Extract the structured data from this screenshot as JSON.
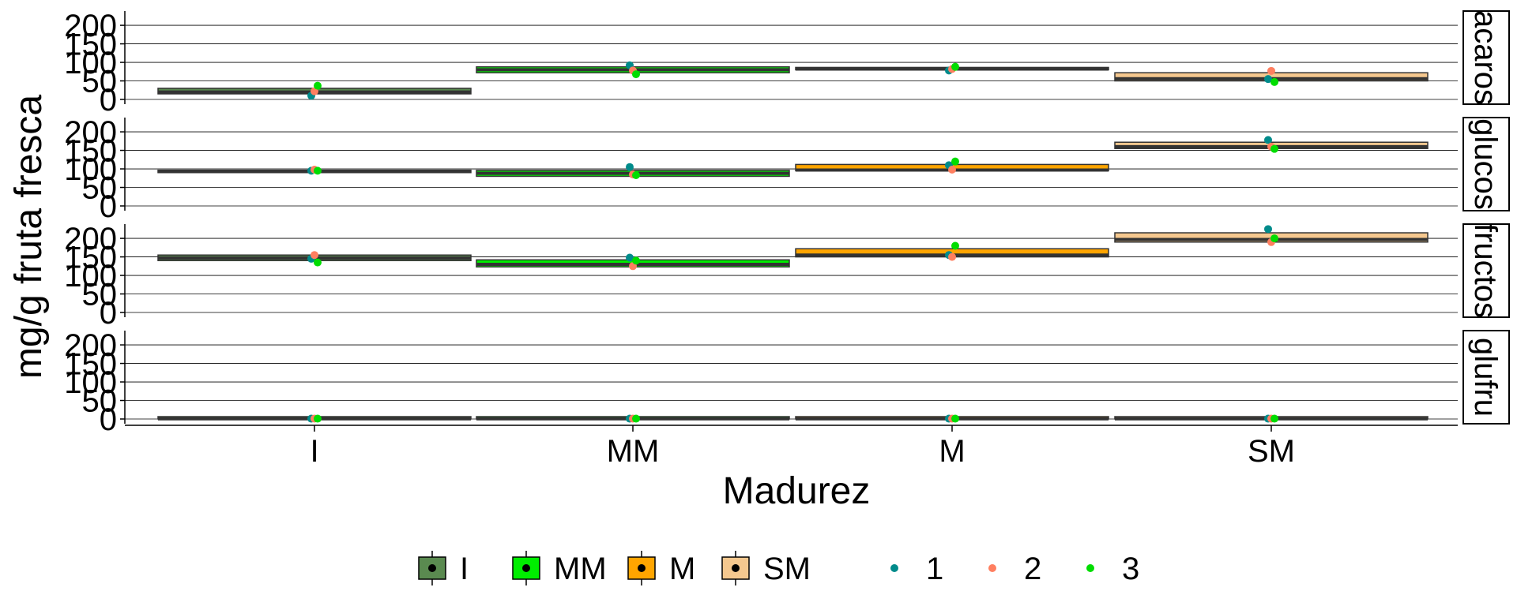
{
  "chart_data": {
    "type": "boxplot",
    "xlabel": "Madurez",
    "ylabel": "mg/g fruta fresca",
    "categories": [
      "I",
      "MM",
      "M",
      "SM"
    ],
    "y_ticks": [
      0,
      50,
      100,
      150,
      200
    ],
    "ylim": [
      0,
      230
    ],
    "grid": "horizontal",
    "legend_position": "bottom",
    "fill_legend": [
      {
        "label": "I",
        "color": "#5A8A50"
      },
      {
        "label": "MM",
        "color": "#00EE00"
      },
      {
        "label": "M",
        "color": "#FFA500"
      },
      {
        "label": "SM",
        "color": "#F5C88F"
      }
    ],
    "point_legend": [
      {
        "label": "1",
        "color": "#008B8B"
      },
      {
        "label": "2",
        "color": "#FF7F60"
      },
      {
        "label": "3",
        "color": "#00DD00"
      }
    ],
    "facets": [
      {
        "label": "acaros",
        "boxes": [
          {
            "category": "I",
            "q1": 15,
            "median": 20,
            "q3": 30
          },
          {
            "category": "MM",
            "q1": 72,
            "median": 80,
            "q3": 88
          },
          {
            "category": "M",
            "q1": 80,
            "median": 82,
            "q3": 85
          },
          {
            "category": "SM",
            "q1": 50,
            "median": 56,
            "q3": 72
          }
        ],
        "points": [
          {
            "category": "I",
            "values": [
              10,
              22,
              37
            ]
          },
          {
            "category": "MM",
            "values": [
              92,
              78,
              68
            ]
          },
          {
            "category": "M",
            "values": [
              78,
              82,
              88
            ]
          },
          {
            "category": "SM",
            "values": [
              55,
              77,
              47
            ]
          }
        ]
      },
      {
        "label": "glucos",
        "boxes": [
          {
            "category": "I",
            "q1": 90,
            "median": 93,
            "q3": 96
          },
          {
            "category": "MM",
            "q1": 80,
            "median": 88,
            "q3": 96
          },
          {
            "category": "M",
            "q1": 95,
            "median": 97,
            "q3": 112
          },
          {
            "category": "SM",
            "q1": 155,
            "median": 160,
            "q3": 172
          }
        ],
        "points": [
          {
            "category": "I",
            "values": [
              95,
              98,
              95
            ]
          },
          {
            "category": "MM",
            "values": [
              105,
              85,
              83
            ]
          },
          {
            "category": "M",
            "values": [
              110,
              98,
              120
            ]
          },
          {
            "category": "SM",
            "values": [
              178,
              160,
              154
            ]
          }
        ]
      },
      {
        "label": "fructos",
        "boxes": [
          {
            "category": "I",
            "q1": 140,
            "median": 147,
            "q3": 155
          },
          {
            "category": "MM",
            "q1": 123,
            "median": 130,
            "q3": 142
          },
          {
            "category": "M",
            "q1": 150,
            "median": 155,
            "q3": 172
          },
          {
            "category": "SM",
            "q1": 190,
            "median": 197,
            "q3": 215
          }
        ],
        "points": [
          {
            "category": "I",
            "values": [
              145,
              155,
              135
            ]
          },
          {
            "category": "MM",
            "values": [
              148,
              125,
              140
            ]
          },
          {
            "category": "M",
            "values": [
              155,
              150,
              180
            ]
          },
          {
            "category": "SM",
            "values": [
              225,
              190,
              200
            ]
          }
        ]
      },
      {
        "label": "glufru",
        "boxes": [
          {
            "category": "I",
            "q1": 0,
            "median": 0.5,
            "q3": 1
          },
          {
            "category": "MM",
            "q1": 0,
            "median": 0.5,
            "q3": 1
          },
          {
            "category": "M",
            "q1": 0,
            "median": 0.5,
            "q3": 1
          },
          {
            "category": "SM",
            "q1": 0,
            "median": 0.5,
            "q3": 1
          }
        ],
        "points": [
          {
            "category": "I",
            "values": [
              1,
              1,
              1
            ]
          },
          {
            "category": "MM",
            "values": [
              1,
              1,
              1
            ]
          },
          {
            "category": "M",
            "values": [
              1,
              1,
              1
            ]
          },
          {
            "category": "SM",
            "values": [
              1,
              1,
              1
            ]
          }
        ]
      }
    ]
  }
}
